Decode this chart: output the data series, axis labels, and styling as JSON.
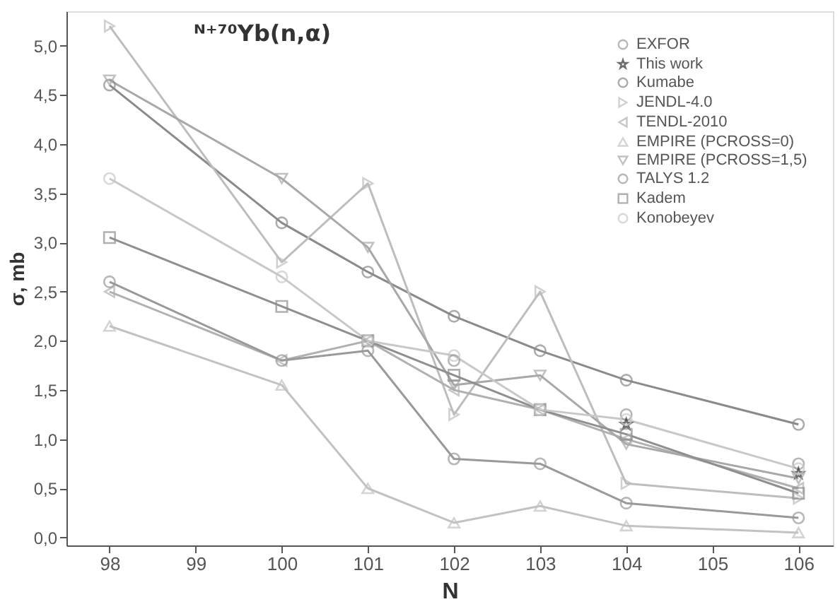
{
  "chart_data": {
    "type": "line",
    "title": "ᴺ⁺⁷⁰Yb(n,α)",
    "xlabel": "N",
    "ylabel": "σ, mb",
    "xlim": [
      97.5,
      106.4
    ],
    "xticks": [
      98,
      99,
      100,
      101,
      102,
      103,
      104,
      105,
      106
    ],
    "ylim": [
      -0.08,
      5.35
    ],
    "yticks": [
      {
        "value": 0,
        "label": "0,0"
      },
      {
        "value": 0.5,
        "label": "0,5"
      },
      {
        "value": 1,
        "label": "1,0"
      },
      {
        "value": 1.5,
        "label": "1,5"
      },
      {
        "value": 2,
        "label": "2,0"
      },
      {
        "value": 2.5,
        "label": "2,5"
      },
      {
        "value": 3,
        "label": "3,0"
      },
      {
        "value": 3.5,
        "label": "3,5"
      },
      {
        "value": 4,
        "label": "4,0"
      },
      {
        "value": 4.5,
        "label": "4,5"
      },
      {
        "value": 5,
        "label": "5,0"
      }
    ],
    "grid": false,
    "legend": "top right",
    "line_style": "solid",
    "series": [
      {
        "name": "EXFOR",
        "type": "scatter",
        "marker": "circle",
        "color": "#9a9a9a",
        "x": [
          102,
          104,
          106
        ],
        "values": [
          1.8,
          1.25,
          0.75
        ]
      },
      {
        "name": "This work",
        "type": "scatter",
        "marker": "star",
        "color": "#333333",
        "x": [
          104,
          106
        ],
        "values": [
          1.15,
          0.65
        ]
      },
      {
        "name": "Kumabe",
        "type": "line",
        "marker": "circle",
        "color": "#8a8a8a",
        "x": [
          98,
          100,
          101,
          102,
          103,
          104,
          106
        ],
        "values": [
          4.6,
          3.2,
          2.7,
          2.25,
          1.9,
          1.6,
          1.15
        ]
      },
      {
        "name": "JENDL-4.0",
        "type": "line",
        "marker": "triangle-right",
        "color": "#bdbdbd",
        "x": [
          98,
          100,
          101,
          102,
          103,
          104,
          106
        ],
        "values": [
          5.2,
          2.8,
          3.6,
          1.25,
          2.5,
          0.55,
          0.4
        ]
      },
      {
        "name": "TENDL-2010",
        "type": "line",
        "marker": "triangle-left",
        "color": "#b0b0b0",
        "x": [
          98,
          100,
          101,
          102,
          103,
          104,
          106
        ],
        "values": [
          2.5,
          1.8,
          2.0,
          1.5,
          1.3,
          1.0,
          0.5
        ]
      },
      {
        "name": "EMPIRE (PCROSS=0)",
        "type": "line",
        "marker": "triangle-up",
        "color": "#c2c2c2",
        "x": [
          98,
          100,
          101,
          102,
          103,
          104,
          106
        ],
        "values": [
          2.15,
          1.55,
          0.5,
          0.15,
          0.32,
          0.12,
          0.05
        ]
      },
      {
        "name": "EMPIRE (PCROSS=1,5)",
        "type": "line",
        "marker": "triangle-down",
        "color": "#a8a8a8",
        "x": [
          98,
          100,
          101,
          102,
          103,
          104,
          106
        ],
        "values": [
          4.65,
          3.65,
          2.95,
          1.55,
          1.65,
          0.95,
          0.6
        ]
      },
      {
        "name": "TALYS 1.2",
        "type": "line",
        "marker": "circle",
        "color": "#999999",
        "x": [
          98,
          100,
          101,
          102,
          103,
          104,
          106
        ],
        "values": [
          2.6,
          1.8,
          1.9,
          0.8,
          0.75,
          0.35,
          0.2
        ]
      },
      {
        "name": "Kadem",
        "type": "line",
        "marker": "square",
        "color": "#8f8f8f",
        "x": [
          98,
          100,
          101,
          102,
          103,
          104,
          106
        ],
        "values": [
          3.05,
          2.35,
          2.0,
          1.65,
          1.3,
          1.05,
          0.45
        ]
      },
      {
        "name": "Konobeyev",
        "type": "line",
        "marker": "circle",
        "color": "#c8c8c8",
        "x": [
          98,
          100,
          101,
          102,
          103,
          104,
          106
        ],
        "values": [
          3.65,
          2.65,
          2.0,
          1.85,
          1.3,
          1.2,
          0.7
        ]
      }
    ]
  }
}
